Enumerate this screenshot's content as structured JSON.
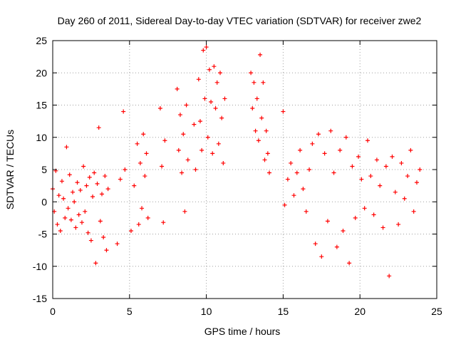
{
  "chart_data": {
    "type": "scatter",
    "title": "Day 260 of 2011, Sidereal Day-to-day VTEC variation (SDTVAR) for receiver zwe2",
    "xlabel": "GPS time / hours",
    "ylabel": "SDTVAR / TECUs",
    "xlim": [
      0,
      25
    ],
    "ylim": [
      -15,
      25
    ],
    "xticks": [
      0,
      5,
      10,
      15,
      20,
      25
    ],
    "yticks": [
      -15,
      -10,
      -5,
      0,
      5,
      10,
      15,
      20,
      25
    ],
    "xtick_labels": [
      "0",
      "5",
      "10",
      "15",
      "20",
      "25"
    ],
    "ytick_labels": [
      "-15",
      "-10",
      "-5",
      "0",
      "5",
      "10",
      "15",
      "20",
      "25"
    ],
    "grid": true,
    "marker": "+",
    "color": "#ff0000",
    "series": [
      {
        "name": "SDTVAR",
        "x": [
          0.0,
          0.1,
          0.2,
          0.3,
          0.4,
          0.5,
          0.6,
          0.7,
          0.8,
          0.9,
          1.0,
          1.1,
          1.2,
          1.3,
          1.4,
          1.5,
          1.6,
          1.7,
          1.8,
          1.9,
          2.0,
          2.1,
          2.2,
          2.3,
          2.4,
          2.5,
          2.6,
          2.7,
          2.8,
          2.9,
          3.0,
          3.1,
          3.2,
          3.3,
          3.4,
          3.5,
          3.6,
          4.2,
          4.4,
          4.6,
          4.7,
          5.1,
          5.3,
          5.5,
          5.6,
          5.7,
          5.8,
          5.9,
          6.0,
          6.1,
          6.2,
          7.0,
          7.1,
          7.2,
          7.3,
          8.1,
          8.2,
          8.3,
          8.4,
          8.5,
          8.6,
          8.7,
          8.8,
          9.2,
          9.3,
          9.5,
          9.6,
          9.7,
          9.8,
          9.9,
          10.0,
          10.1,
          10.2,
          10.3,
          10.4,
          10.5,
          10.6,
          10.7,
          10.8,
          10.9,
          11.0,
          11.1,
          11.2,
          12.9,
          13.0,
          13.1,
          13.2,
          13.3,
          13.4,
          13.5,
          13.6,
          13.7,
          13.8,
          13.9,
          14.0,
          14.1,
          15.0,
          15.1,
          15.3,
          15.5,
          15.7,
          15.9,
          16.1,
          16.3,
          16.5,
          16.7,
          16.9,
          17.1,
          17.3,
          17.5,
          17.7,
          17.9,
          18.1,
          18.3,
          18.5,
          18.7,
          18.9,
          19.1,
          19.3,
          19.5,
          19.7,
          19.9,
          20.1,
          20.3,
          20.5,
          20.7,
          20.9,
          21.1,
          21.3,
          21.5,
          21.7,
          21.9,
          22.1,
          22.3,
          22.5,
          22.7,
          22.9,
          23.1,
          23.3,
          23.5,
          23.7,
          23.9
        ],
        "y": [
          2.0,
          -1.5,
          4.8,
          -3.5,
          1.0,
          -4.5,
          3.2,
          0.5,
          -2.5,
          8.5,
          -1.0,
          4.2,
          -2.8,
          1.5,
          0.0,
          -4.0,
          3.0,
          -2.0,
          1.8,
          -3.2,
          5.5,
          -1.5,
          2.5,
          -4.8,
          3.8,
          -6.0,
          0.8,
          4.5,
          -9.5,
          2.8,
          11.5,
          -3.0,
          1.2,
          -5.5,
          4.0,
          -7.5,
          2.0,
          -6.5,
          3.5,
          14.0,
          5.0,
          -4.5,
          2.5,
          9.0,
          -3.5,
          6.0,
          -1.0,
          10.5,
          4.0,
          7.5,
          -2.5,
          14.5,
          5.5,
          -3.2,
          9.5,
          17.5,
          8.0,
          13.5,
          4.5,
          10.5,
          -1.5,
          15.0,
          6.5,
          12.0,
          5.0,
          19.0,
          12.5,
          8.0,
          23.5,
          16.0,
          24.0,
          10.0,
          20.5,
          15.5,
          7.5,
          21.0,
          14.5,
          18.5,
          9.0,
          20.0,
          13.0,
          6.0,
          16.0,
          20.0,
          14.5,
          18.5,
          11.0,
          16.0,
          9.5,
          22.8,
          13.0,
          18.5,
          6.5,
          11.0,
          7.5,
          4.5,
          14.0,
          -0.5,
          3.5,
          6.0,
          1.0,
          4.5,
          8.0,
          2.0,
          -1.5,
          5.0,
          9.0,
          -6.5,
          10.5,
          -8.5,
          7.5,
          -3.0,
          11.0,
          4.5,
          -7.0,
          8.0,
          -4.5,
          10.0,
          -9.5,
          5.5,
          -2.5,
          7.0,
          3.5,
          -1.0,
          9.5,
          4.0,
          -2.0,
          6.5,
          2.5,
          -4.0,
          5.5,
          -11.5,
          7.0,
          1.5,
          -3.5,
          6.0,
          0.5,
          4.0,
          8.0,
          -1.5,
          3.0,
          5.0
        ]
      }
    ]
  }
}
